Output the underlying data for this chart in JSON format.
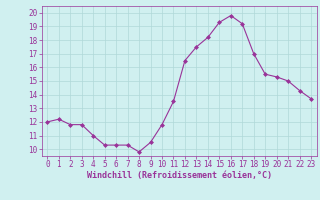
{
  "x": [
    0,
    1,
    2,
    3,
    4,
    5,
    6,
    7,
    8,
    9,
    10,
    11,
    12,
    13,
    14,
    15,
    16,
    17,
    18,
    19,
    20,
    21,
    22,
    23
  ],
  "y": [
    12.0,
    12.2,
    11.8,
    11.8,
    11.0,
    10.3,
    10.3,
    10.3,
    9.8,
    10.5,
    11.8,
    13.5,
    16.5,
    17.5,
    18.2,
    19.3,
    19.8,
    19.2,
    17.0,
    15.5,
    15.3,
    15.0,
    14.3,
    13.7
  ],
  "line_color": "#993399",
  "marker": "D",
  "marker_size": 2,
  "bg_color": "#d0f0f0",
  "grid_color": "#b0d8d8",
  "xlabel": "Windchill (Refroidissement éolien,°C)",
  "xlabel_color": "#993399",
  "xlabel_fontsize": 6,
  "tick_fontsize": 5.5,
  "tick_color": "#993399",
  "yticks": [
    10,
    11,
    12,
    13,
    14,
    15,
    16,
    17,
    18,
    19,
    20
  ],
  "xticks": [
    0,
    1,
    2,
    3,
    4,
    5,
    6,
    7,
    8,
    9,
    10,
    11,
    12,
    13,
    14,
    15,
    16,
    17,
    18,
    19,
    20,
    21,
    22,
    23
  ],
  "ylim": [
    9.5,
    20.5
  ],
  "xlim": [
    -0.5,
    23.5
  ]
}
